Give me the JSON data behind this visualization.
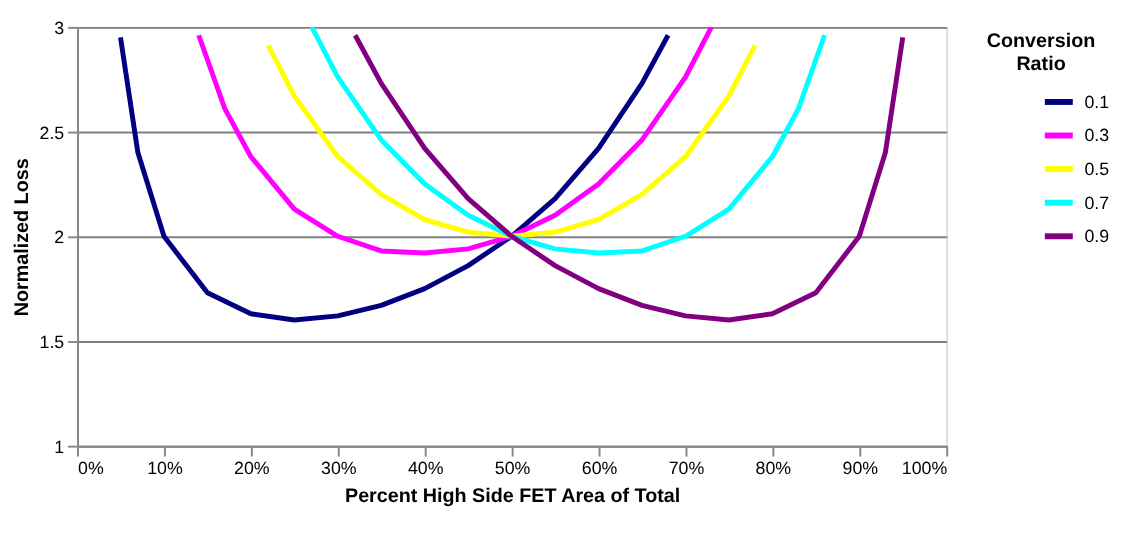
{
  "chart_data": {
    "type": "line",
    "xlabel": "Percent High Side FET Area of Total",
    "ylabel": "Normalized Loss",
    "legend_title": "Conversion Ratio",
    "legend": "right",
    "grid": "y",
    "line_style": "solid",
    "xlim": [
      0,
      100
    ],
    "ylim": [
      1,
      3
    ],
    "xticks": [
      {
        "value": 0,
        "label": "0%"
      },
      {
        "value": 10,
        "label": "10%"
      },
      {
        "value": 20,
        "label": "20%"
      },
      {
        "value": 30,
        "label": "30%"
      },
      {
        "value": 40,
        "label": "40%"
      },
      {
        "value": 50,
        "label": "50%"
      },
      {
        "value": 60,
        "label": "60%"
      },
      {
        "value": 70,
        "label": "70%"
      },
      {
        "value": 80,
        "label": "80%"
      },
      {
        "value": 90,
        "label": "90%"
      },
      {
        "value": 100,
        "label": "100%"
      }
    ],
    "yticks": [
      1,
      1.5,
      2,
      2.5,
      3
    ],
    "series": [
      {
        "name": "0.1",
        "color": "#000080",
        "x": [
          5,
          7,
          10,
          15,
          20,
          25,
          30,
          35,
          40,
          45,
          50,
          55,
          60,
          65,
          68
        ],
        "values": [
          2.95,
          2.4,
          2.0,
          1.73,
          1.63,
          1.6,
          1.62,
          1.67,
          1.75,
          1.86,
          2.0,
          2.18,
          2.42,
          2.73,
          2.96
        ]
      },
      {
        "name": "0.3",
        "color": "#ff00ff",
        "x": [
          14,
          17,
          20,
          25,
          30,
          35,
          40,
          45,
          50,
          55,
          60,
          65,
          70,
          73
        ],
        "values": [
          2.96,
          2.61,
          2.38,
          2.13,
          2.0,
          1.93,
          1.92,
          1.94,
          2.0,
          2.1,
          2.25,
          2.46,
          2.76,
          3.0
        ]
      },
      {
        "name": "0.5",
        "color": "#ffff00",
        "x": [
          22,
          25,
          30,
          35,
          40,
          45,
          50,
          55,
          60,
          65,
          70,
          75,
          78
        ],
        "values": [
          2.91,
          2.67,
          2.38,
          2.2,
          2.08,
          2.02,
          2.0,
          2.02,
          2.08,
          2.2,
          2.38,
          2.67,
          2.91
        ]
      },
      {
        "name": "0.7",
        "color": "#00ffff",
        "x": [
          27,
          30,
          35,
          40,
          45,
          50,
          55,
          60,
          65,
          70,
          75,
          80,
          83,
          86
        ],
        "values": [
          3.0,
          2.76,
          2.46,
          2.25,
          2.1,
          2.0,
          1.94,
          1.92,
          1.93,
          2.0,
          2.13,
          2.38,
          2.61,
          2.96
        ]
      },
      {
        "name": "0.9",
        "color": "#800080",
        "x": [
          32,
          35,
          40,
          45,
          50,
          55,
          60,
          65,
          70,
          75,
          80,
          85,
          90,
          93,
          95
        ],
        "values": [
          2.96,
          2.73,
          2.42,
          2.18,
          2.0,
          1.86,
          1.75,
          1.67,
          1.62,
          1.6,
          1.63,
          1.73,
          2.0,
          2.4,
          2.95
        ]
      }
    ]
  }
}
